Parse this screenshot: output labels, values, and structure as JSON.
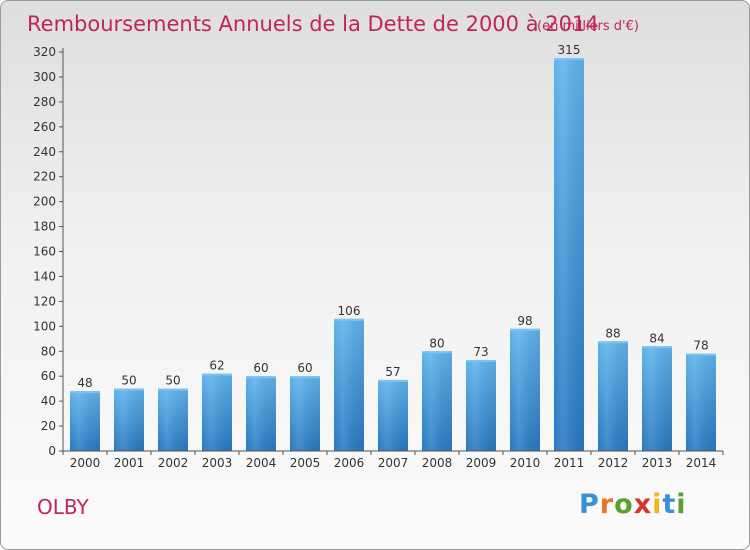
{
  "chart_data": {
    "type": "bar",
    "title": "Remboursements Annuels de la Dette de 2000 à 2014",
    "subtitle": "(en milliers d'€)",
    "categories": [
      "2000",
      "2001",
      "2002",
      "2003",
      "2004",
      "2005",
      "2006",
      "2007",
      "2008",
      "2009",
      "2010",
      "2011",
      "2012",
      "2013",
      "2014"
    ],
    "values": [
      48,
      50,
      50,
      62,
      60,
      60,
      106,
      57,
      80,
      73,
      98,
      315,
      88,
      84,
      78
    ],
    "ylim": [
      0,
      320
    ],
    "yticks": [
      0,
      20,
      40,
      60,
      80,
      100,
      120,
      140,
      160,
      180,
      200,
      220,
      240,
      260,
      280,
      300,
      320
    ],
    "grid": false,
    "legend": "none"
  },
  "place_name": "OLBY",
  "logo": {
    "letters": [
      "P",
      "r",
      "o",
      "x",
      "i",
      "t",
      "i"
    ],
    "colors": [
      "#3a8fd6",
      "#e8742a",
      "#5aa02c",
      "#d8322e",
      "#f0b41c",
      "#3a8fd6",
      "#5aa02c"
    ]
  },
  "colors": {
    "title": "#c0255a",
    "bar_light": "#5fb0ea",
    "bar_dark": "#2a7cc3",
    "axis": "#333333"
  }
}
